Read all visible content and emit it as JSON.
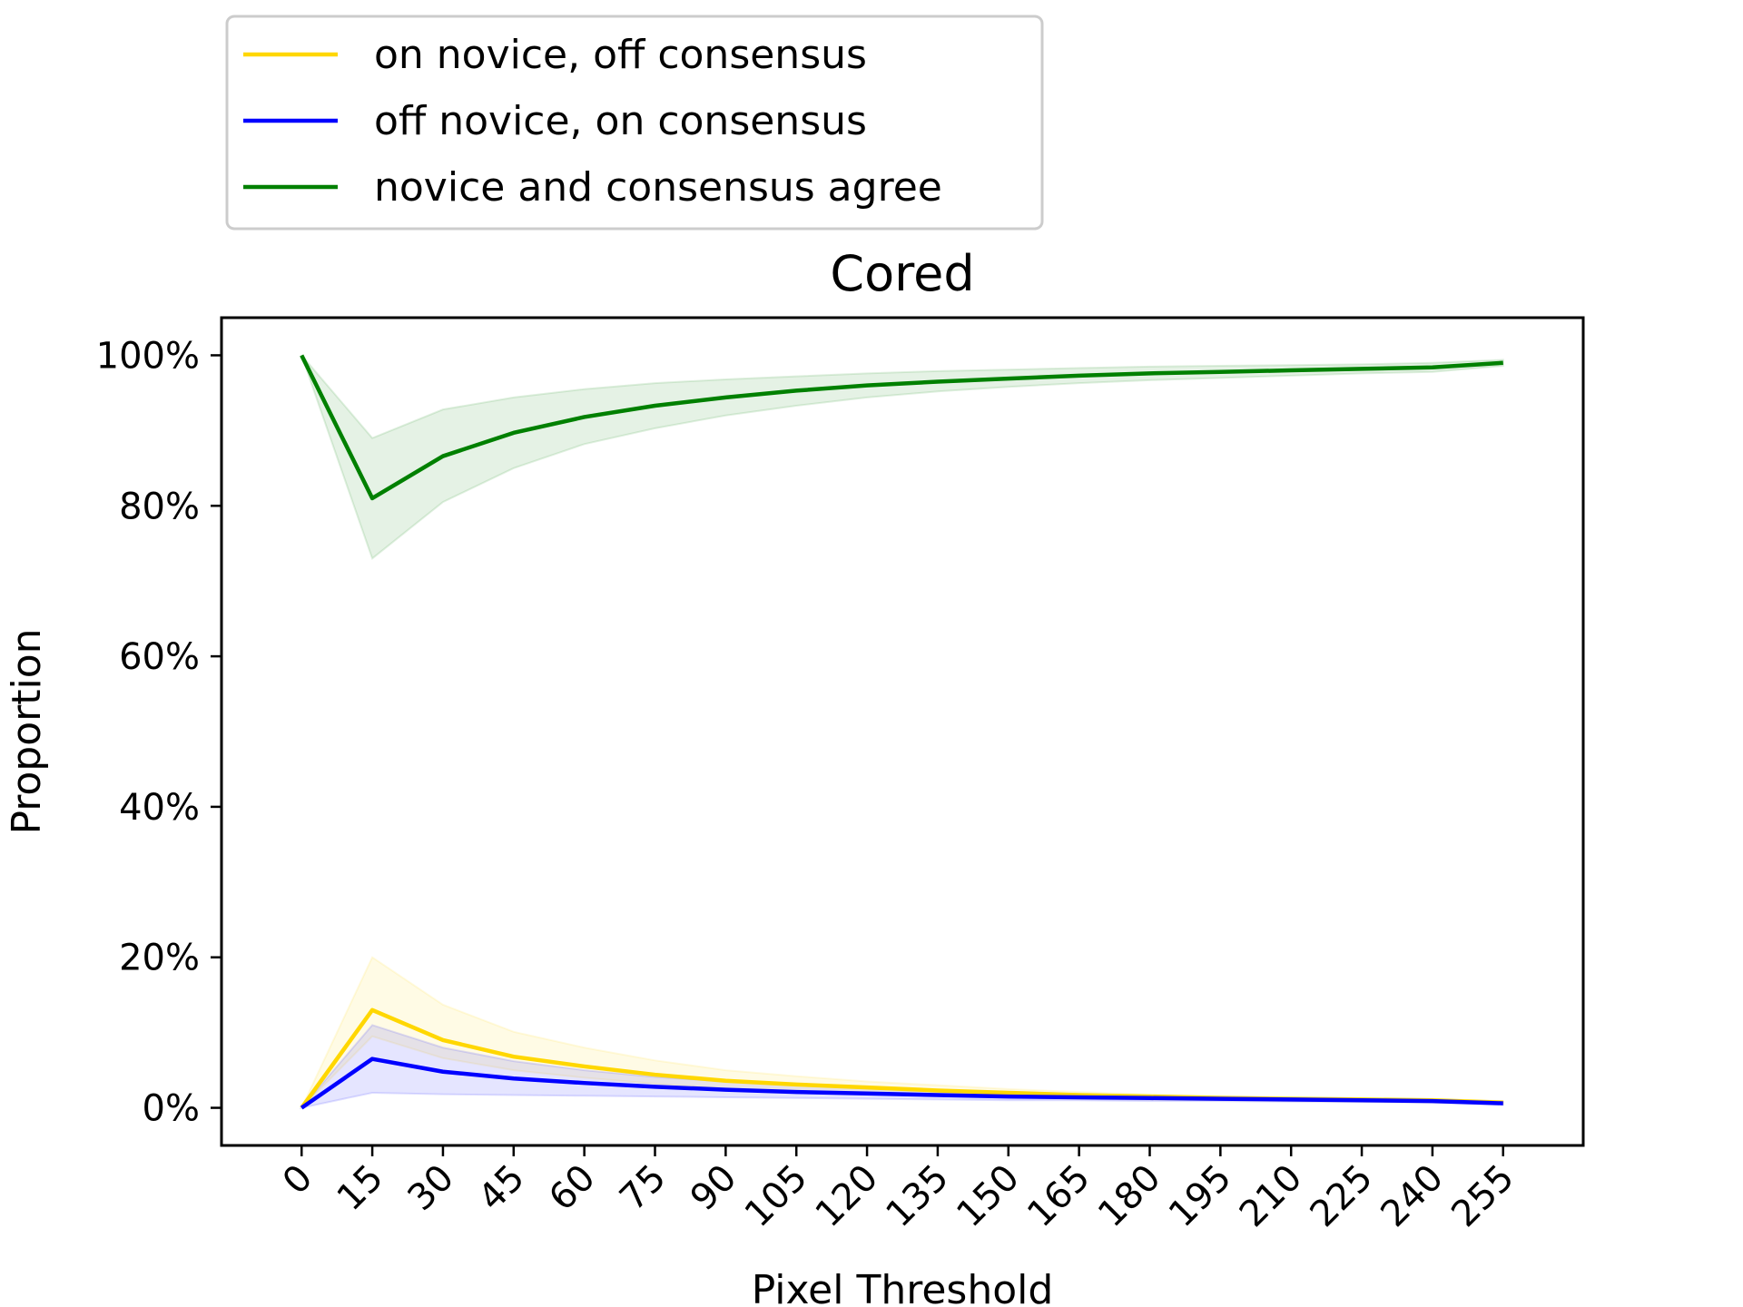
{
  "chart_data": {
    "type": "line",
    "title": "Cored",
    "xlabel": "Pixel Threshold",
    "ylabel": "Proportion",
    "ylim": [
      -0.05,
      1.05
    ],
    "xlim": [
      -17,
      272
    ],
    "x": [
      0,
      15,
      30,
      45,
      60,
      75,
      90,
      105,
      120,
      135,
      150,
      165,
      180,
      195,
      210,
      225,
      240,
      255
    ],
    "x_tick_labels": [
      "0",
      "15",
      "30",
      "45",
      "60",
      "75",
      "90",
      "105",
      "120",
      "135",
      "150",
      "165",
      "180",
      "195",
      "210",
      "225",
      "240",
      "255"
    ],
    "y_ticks": [
      0,
      0.2,
      0.4,
      0.6,
      0.8,
      1.0
    ],
    "y_tick_labels": [
      "0%",
      "20%",
      "40%",
      "60%",
      "80%",
      "100%"
    ],
    "grid": false,
    "legend_position": "top-left, outside above plot",
    "series": [
      {
        "name": "on novice, off consensus",
        "color": "#FFD700",
        "values": [
          0.0,
          0.13,
          0.09,
          0.068,
          0.055,
          0.044,
          0.036,
          0.031,
          0.027,
          0.023,
          0.02,
          0.017,
          0.015,
          0.013,
          0.012,
          0.011,
          0.01,
          0.007
        ],
        "band_upper": [
          0.0,
          0.2,
          0.137,
          0.101,
          0.08,
          0.063,
          0.05,
          0.042,
          0.035,
          0.03,
          0.025,
          0.021,
          0.018,
          0.016,
          0.014,
          0.013,
          0.012,
          0.009
        ],
        "band_lower": [
          0.0,
          0.095,
          0.066,
          0.05,
          0.04,
          0.032,
          0.026,
          0.022,
          0.019,
          0.016,
          0.014,
          0.012,
          0.011,
          0.01,
          0.009,
          0.008,
          0.007,
          0.005
        ]
      },
      {
        "name": "off novice, on consensus",
        "color": "#0000FF",
        "values": [
          0.0,
          0.065,
          0.048,
          0.039,
          0.033,
          0.028,
          0.024,
          0.021,
          0.019,
          0.017,
          0.015,
          0.014,
          0.013,
          0.012,
          0.011,
          0.01,
          0.009,
          0.006
        ],
        "band_upper": [
          0.0,
          0.11,
          0.08,
          0.062,
          0.05,
          0.041,
          0.035,
          0.03,
          0.026,
          0.023,
          0.02,
          0.018,
          0.016,
          0.015,
          0.013,
          0.012,
          0.011,
          0.008
        ],
        "band_lower": [
          0.0,
          0.02,
          0.018,
          0.017,
          0.016,
          0.015,
          0.014,
          0.013,
          0.012,
          0.011,
          0.01,
          0.01,
          0.009,
          0.009,
          0.008,
          0.008,
          0.007,
          0.004
        ]
      },
      {
        "name": "novice and consensus agree",
        "color": "#008000",
        "values": [
          1.0,
          0.81,
          0.866,
          0.897,
          0.918,
          0.933,
          0.944,
          0.953,
          0.96,
          0.965,
          0.969,
          0.973,
          0.976,
          0.978,
          0.98,
          0.982,
          0.984,
          0.99
        ],
        "band_upper": [
          1.0,
          0.89,
          0.928,
          0.944,
          0.955,
          0.963,
          0.968,
          0.972,
          0.976,
          0.979,
          0.981,
          0.983,
          0.985,
          0.986,
          0.987,
          0.988,
          0.99,
          0.994
        ],
        "band_lower": [
          1.0,
          0.73,
          0.805,
          0.85,
          0.882,
          0.903,
          0.92,
          0.933,
          0.944,
          0.952,
          0.958,
          0.963,
          0.967,
          0.97,
          0.973,
          0.976,
          0.978,
          0.986
        ]
      }
    ]
  }
}
